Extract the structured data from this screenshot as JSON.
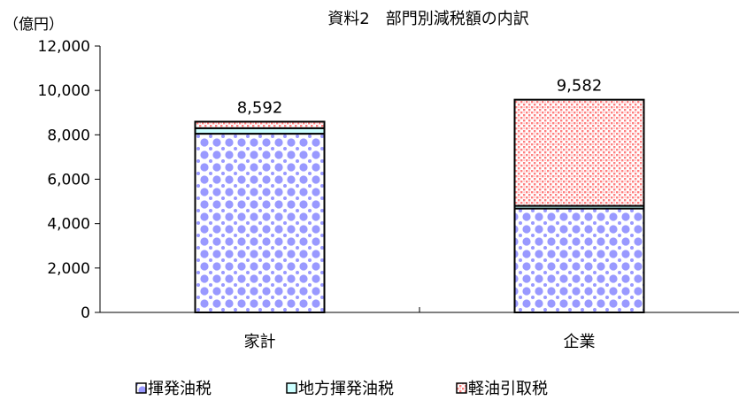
{
  "chart_data": {
    "type": "bar",
    "stacked": true,
    "title": "資料2　部門別減税額の内訳",
    "ylabel": "（億円）",
    "xlabel": "",
    "ylim": [
      0,
      12000
    ],
    "yticks": [
      "0",
      "2,000",
      "4,000",
      "6,000",
      "8,000",
      "10,000",
      "12,000"
    ],
    "categories": [
      "家計",
      "企業"
    ],
    "series": [
      {
        "name": "揮発油税",
        "values": [
          8050,
          4680
        ],
        "color": "#9999ff",
        "pattern": "diamond-dots"
      },
      {
        "name": "地方揮発油税",
        "values": [
          250,
          120
        ],
        "color": "#ccffff",
        "pattern": "solid"
      },
      {
        "name": "軽油引取税",
        "values": [
          292,
          4782
        ],
        "color": "#ff8080",
        "pattern": "dots"
      }
    ],
    "totals": [
      "8,592",
      "9,582"
    ],
    "legend_position": "bottom",
    "grid": false
  }
}
